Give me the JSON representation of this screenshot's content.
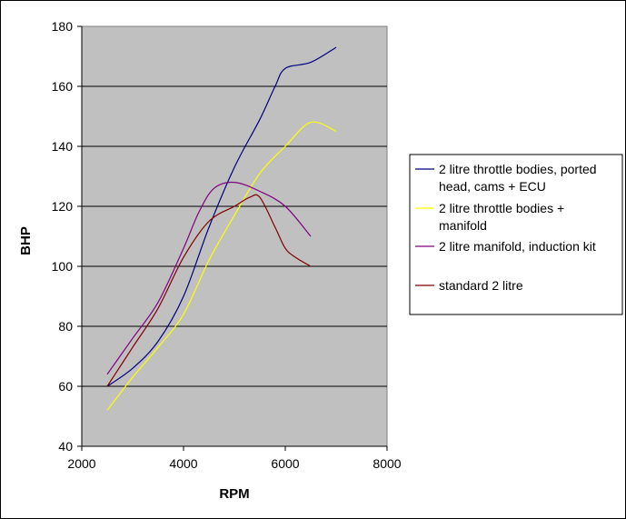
{
  "chart_data": {
    "type": "line",
    "title": "",
    "xlabel": "RPM",
    "ylabel": "BHP",
    "xlim": [
      2000,
      8000
    ],
    "ylim": [
      40,
      180
    ],
    "x_ticks": [
      2000,
      4000,
      6000,
      8000
    ],
    "y_ticks": [
      40,
      60,
      80,
      100,
      120,
      140,
      160,
      180
    ],
    "grid": "horizontal",
    "plot_background": "#c0c0c0",
    "legend_position": "right",
    "series": [
      {
        "name": "2 litre throttle bodies, ported head, cams + ECU",
        "legend_lines": [
          "2 litre throttle bodies, ported",
          "head, cams + ECU"
        ],
        "color": "#000080",
        "points": [
          [
            2500,
            60
          ],
          [
            3000,
            66
          ],
          [
            3500,
            75
          ],
          [
            4000,
            90
          ],
          [
            4500,
            113
          ],
          [
            5000,
            133
          ],
          [
            5500,
            149
          ],
          [
            5800,
            160
          ],
          [
            6000,
            166
          ],
          [
            6500,
            168
          ],
          [
            7000,
            173
          ]
        ]
      },
      {
        "name": "2 litre throttle bodies + manifold",
        "legend_lines": [
          "2 litre throttle bodies +",
          "manifold"
        ],
        "color": "#ffff00",
        "points": [
          [
            2500,
            52
          ],
          [
            3000,
            63
          ],
          [
            3500,
            73
          ],
          [
            4000,
            84
          ],
          [
            4500,
            102
          ],
          [
            5000,
            117
          ],
          [
            5500,
            131
          ],
          [
            6000,
            140
          ],
          [
            6500,
            148
          ],
          [
            7000,
            145
          ]
        ]
      },
      {
        "name": "2 litre manifold, induction kit",
        "legend_lines": [
          "2 litre manifold, induction kit"
        ],
        "color": "#800080",
        "points": [
          [
            2500,
            64
          ],
          [
            3000,
            76
          ],
          [
            3500,
            88
          ],
          [
            4000,
            106
          ],
          [
            4300,
            118
          ],
          [
            4600,
            126
          ],
          [
            5000,
            128
          ],
          [
            5500,
            125
          ],
          [
            6000,
            120
          ],
          [
            6500,
            110
          ]
        ]
      },
      {
        "name": "standard 2 litre",
        "legend_lines": [
          "standard 2 litre"
        ],
        "color": "#800000",
        "points": [
          [
            2500,
            60
          ],
          [
            3000,
            73
          ],
          [
            3500,
            86
          ],
          [
            4000,
            103
          ],
          [
            4500,
            115
          ],
          [
            5000,
            120
          ],
          [
            5300,
            123
          ],
          [
            5500,
            123
          ],
          [
            5800,
            113
          ],
          [
            6000,
            106
          ],
          [
            6200,
            103
          ],
          [
            6500,
            100
          ]
        ]
      }
    ]
  }
}
